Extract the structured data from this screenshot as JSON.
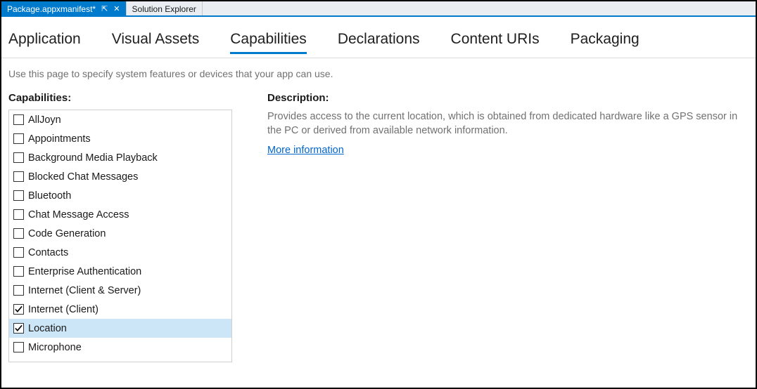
{
  "colors": {
    "accent": "#007acc",
    "link": "#0066cc",
    "muted_text": "#717171",
    "selected_row_bg": "#cde6f7",
    "border_light": "#cfcfcf",
    "tab_underline": "#007acc"
  },
  "doc_tabs": {
    "active": {
      "title": "Package.appxmanifest*",
      "pin_glyph": "⇱",
      "close_glyph": "✕"
    },
    "inactive": [
      {
        "title": "Solution Explorer"
      }
    ]
  },
  "cat_tabs": [
    {
      "label": "Application",
      "active": false
    },
    {
      "label": "Visual Assets",
      "active": false
    },
    {
      "label": "Capabilities",
      "active": true
    },
    {
      "label": "Declarations",
      "active": false
    },
    {
      "label": "Content URIs",
      "active": false
    },
    {
      "label": "Packaging",
      "active": false
    }
  ],
  "hint": "Use this page to specify system features or devices that your app can use.",
  "left_label": "Capabilities:",
  "capabilities": [
    {
      "label": "AllJoyn",
      "checked": false,
      "selected": false
    },
    {
      "label": "Appointments",
      "checked": false,
      "selected": false
    },
    {
      "label": "Background Media Playback",
      "checked": false,
      "selected": false
    },
    {
      "label": "Blocked Chat Messages",
      "checked": false,
      "selected": false
    },
    {
      "label": "Bluetooth",
      "checked": false,
      "selected": false
    },
    {
      "label": "Chat Message Access",
      "checked": false,
      "selected": false
    },
    {
      "label": "Code Generation",
      "checked": false,
      "selected": false
    },
    {
      "label": "Contacts",
      "checked": false,
      "selected": false
    },
    {
      "label": "Enterprise Authentication",
      "checked": false,
      "selected": false
    },
    {
      "label": "Internet (Client & Server)",
      "checked": false,
      "selected": false
    },
    {
      "label": "Internet (Client)",
      "checked": true,
      "selected": false
    },
    {
      "label": "Location",
      "checked": true,
      "selected": true
    },
    {
      "label": "Microphone",
      "checked": false,
      "selected": false
    }
  ],
  "right_label": "Description:",
  "description_text": "Provides access to the current location, which is obtained from dedicated hardware like a GPS sensor in the PC or derived from available network information.",
  "more_info": "More information"
}
